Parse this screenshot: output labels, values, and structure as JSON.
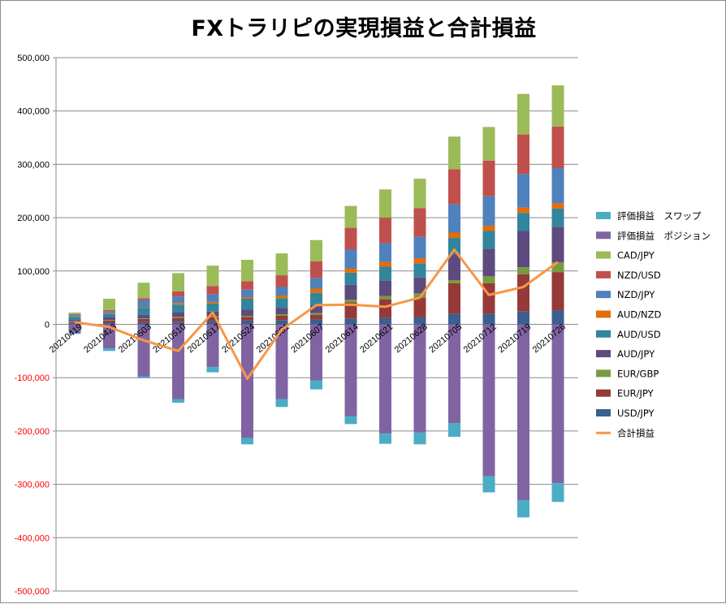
{
  "chart_data": {
    "type": "bar",
    "stacked": true,
    "title": "FXトラリピの実現損益と合計損益",
    "categories": [
      "20210419",
      "20210426",
      "20210503",
      "20210510",
      "20210517",
      "20210524",
      "20210531",
      "20210607",
      "20210614",
      "20210621",
      "20210628",
      "20210705",
      "20210712",
      "20210719",
      "20210726"
    ],
    "ylim": [
      -500000,
      500000
    ],
    "yticks": [
      500000,
      400000,
      300000,
      200000,
      100000,
      0,
      -100000,
      -200000,
      -300000,
      -400000,
      -500000
    ],
    "ytick_labels": [
      "500,000",
      "400,000",
      "300,000",
      "200,000",
      "100,000",
      "0",
      "-100,000",
      "-200,000",
      "-300,000",
      "-400,000",
      "-500,000"
    ],
    "negative_tick_color": "#ff0000",
    "grid": true,
    "legend_position": "right",
    "series": [
      {
        "name": "USD/JPY",
        "color": "#3b5f8f",
        "values": [
          2000,
          3000,
          4000,
          5000,
          6000,
          7000,
          8000,
          9000,
          11000,
          12000,
          13000,
          20000,
          20000,
          24000,
          26000
        ]
      },
      {
        "name": "EUR/JPY",
        "color": "#953a38",
        "values": [
          2000,
          4000,
          6000,
          7000,
          7000,
          7000,
          8000,
          9000,
          30000,
          35000,
          37000,
          57000,
          57000,
          70000,
          72000
        ]
      },
      {
        "name": "EUR/GBP",
        "color": "#779b3e",
        "values": [
          1000,
          1000,
          1000,
          2000,
          2000,
          2000,
          3000,
          3000,
          5000,
          6000,
          8000,
          6000,
          13000,
          13000,
          18000
        ]
      },
      {
        "name": "AUD/JPY",
        "color": "#5e4a7e",
        "values": [
          3000,
          6000,
          7000,
          9000,
          9000,
          12000,
          12000,
          14000,
          28000,
          29000,
          30000,
          48000,
          52000,
          68000,
          67000
        ]
      },
      {
        "name": "AUD/USD",
        "color": "#31859c",
        "values": [
          6000,
          6000,
          13000,
          14000,
          15000,
          20000,
          18000,
          24000,
          23000,
          26000,
          26000,
          31000,
          33000,
          34000,
          34000
        ]
      },
      {
        "name": "AUD/NZD",
        "color": "#e46c0a",
        "values": [
          1000,
          1000,
          1000,
          3000,
          3000,
          3000,
          5000,
          8000,
          8000,
          9000,
          10000,
          10000,
          10000,
          10000,
          10000
        ]
      },
      {
        "name": "NZD/JPY",
        "color": "#4f81bd",
        "values": [
          3000,
          3000,
          13000,
          12000,
          14000,
          14000,
          16000,
          20000,
          35000,
          35000,
          40000,
          53000,
          55000,
          63000,
          66000
        ]
      },
      {
        "name": "NZD/USD",
        "color": "#c0504d",
        "values": [
          1000,
          3000,
          4000,
          10000,
          16000,
          16000,
          22000,
          31000,
          41000,
          48000,
          54000,
          66000,
          67000,
          74000,
          78000
        ]
      },
      {
        "name": "CAD/JPY",
        "color": "#9bbb59",
        "values": [
          3000,
          21000,
          29000,
          34000,
          38000,
          40000,
          41000,
          40000,
          41000,
          53000,
          55000,
          61000,
          63000,
          76000,
          77000
        ]
      },
      {
        "name": "評価損益　ポジション",
        "color": "#8064a2",
        "values": [
          -16000,
          -45000,
          -98000,
          -140000,
          -80000,
          -213000,
          -140000,
          -105000,
          -172000,
          -205000,
          -203000,
          -185000,
          -285000,
          -330000,
          -298000
        ]
      },
      {
        "name": "評価損益　スワップ",
        "color": "#4bacc6",
        "values": [
          -2000,
          -5000,
          -3000,
          -7000,
          -10000,
          -12000,
          -15000,
          -17000,
          -15000,
          -19000,
          -22000,
          -26000,
          -30000,
          -32000,
          -35000
        ]
      }
    ],
    "line_series": {
      "name": "合計損益",
      "color": "#f79646",
      "values": [
        4000,
        -5000,
        -30000,
        -50000,
        22000,
        -102000,
        -10000,
        36000,
        37000,
        33000,
        50000,
        140000,
        55000,
        70000,
        117000
      ]
    },
    "legend_order": [
      "評価損益　スワップ",
      "評価損益　ポジション",
      "CAD/JPY",
      "NZD/USD",
      "NZD/JPY",
      "AUD/NZD",
      "AUD/USD",
      "AUD/JPY",
      "EUR/GBP",
      "EUR/JPY",
      "USD/JPY",
      "合計損益"
    ]
  }
}
